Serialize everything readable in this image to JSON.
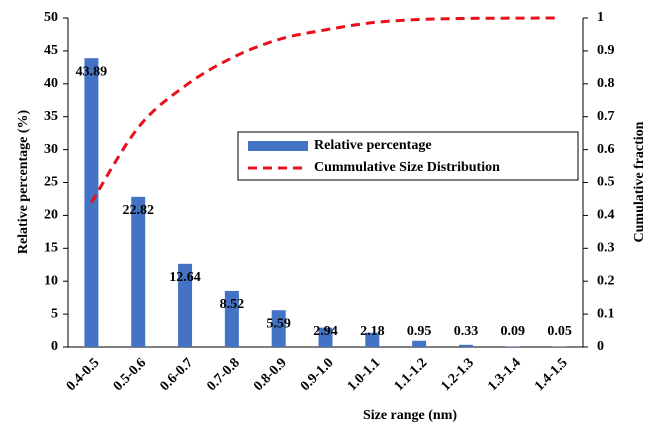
{
  "chart_data": {
    "type": "bar-line",
    "categories": [
      "0.4-0.5",
      "0.5-0.6",
      "0.6-0.7",
      "0.7-0.8",
      "0.8-0.9",
      "0.9-1.0",
      "1.0-1.1",
      "1.1-1.2",
      "1.2-1.3",
      "1.3-1.4",
      "1.4-1.5"
    ],
    "series": [
      {
        "name": "Relative percentage",
        "type": "bar",
        "color": "#4472c4",
        "axis": "y",
        "values": [
          43.89,
          22.82,
          12.64,
          8.52,
          5.59,
          2.94,
          2.18,
          0.95,
          0.33,
          0.09,
          0.05
        ]
      },
      {
        "name": "Cummulative Size Distribution",
        "type": "line",
        "color": "#e8101a",
        "axis": "y2",
        "dashed": true,
        "values": [
          0.4389,
          0.6671,
          0.7935,
          0.8787,
          0.9346,
          0.964,
          0.9858,
          0.9953,
          0.9986,
          0.9995,
          1.0
        ]
      }
    ],
    "x_label": "Size range (nm)",
    "y_label": "Relative percentage (%)",
    "y2_label": "Cumulative fraction",
    "ylim": [
      0,
      50
    ],
    "yticks": [
      0,
      5,
      10,
      15,
      20,
      25,
      30,
      35,
      40,
      45,
      50
    ],
    "y2lim": [
      0,
      1
    ],
    "y2ticks": [
      0,
      0.1,
      0.2,
      0.3,
      0.4,
      0.5,
      0.6,
      0.7,
      0.8,
      0.9,
      1
    ],
    "grid": false,
    "data_labels": true
  }
}
